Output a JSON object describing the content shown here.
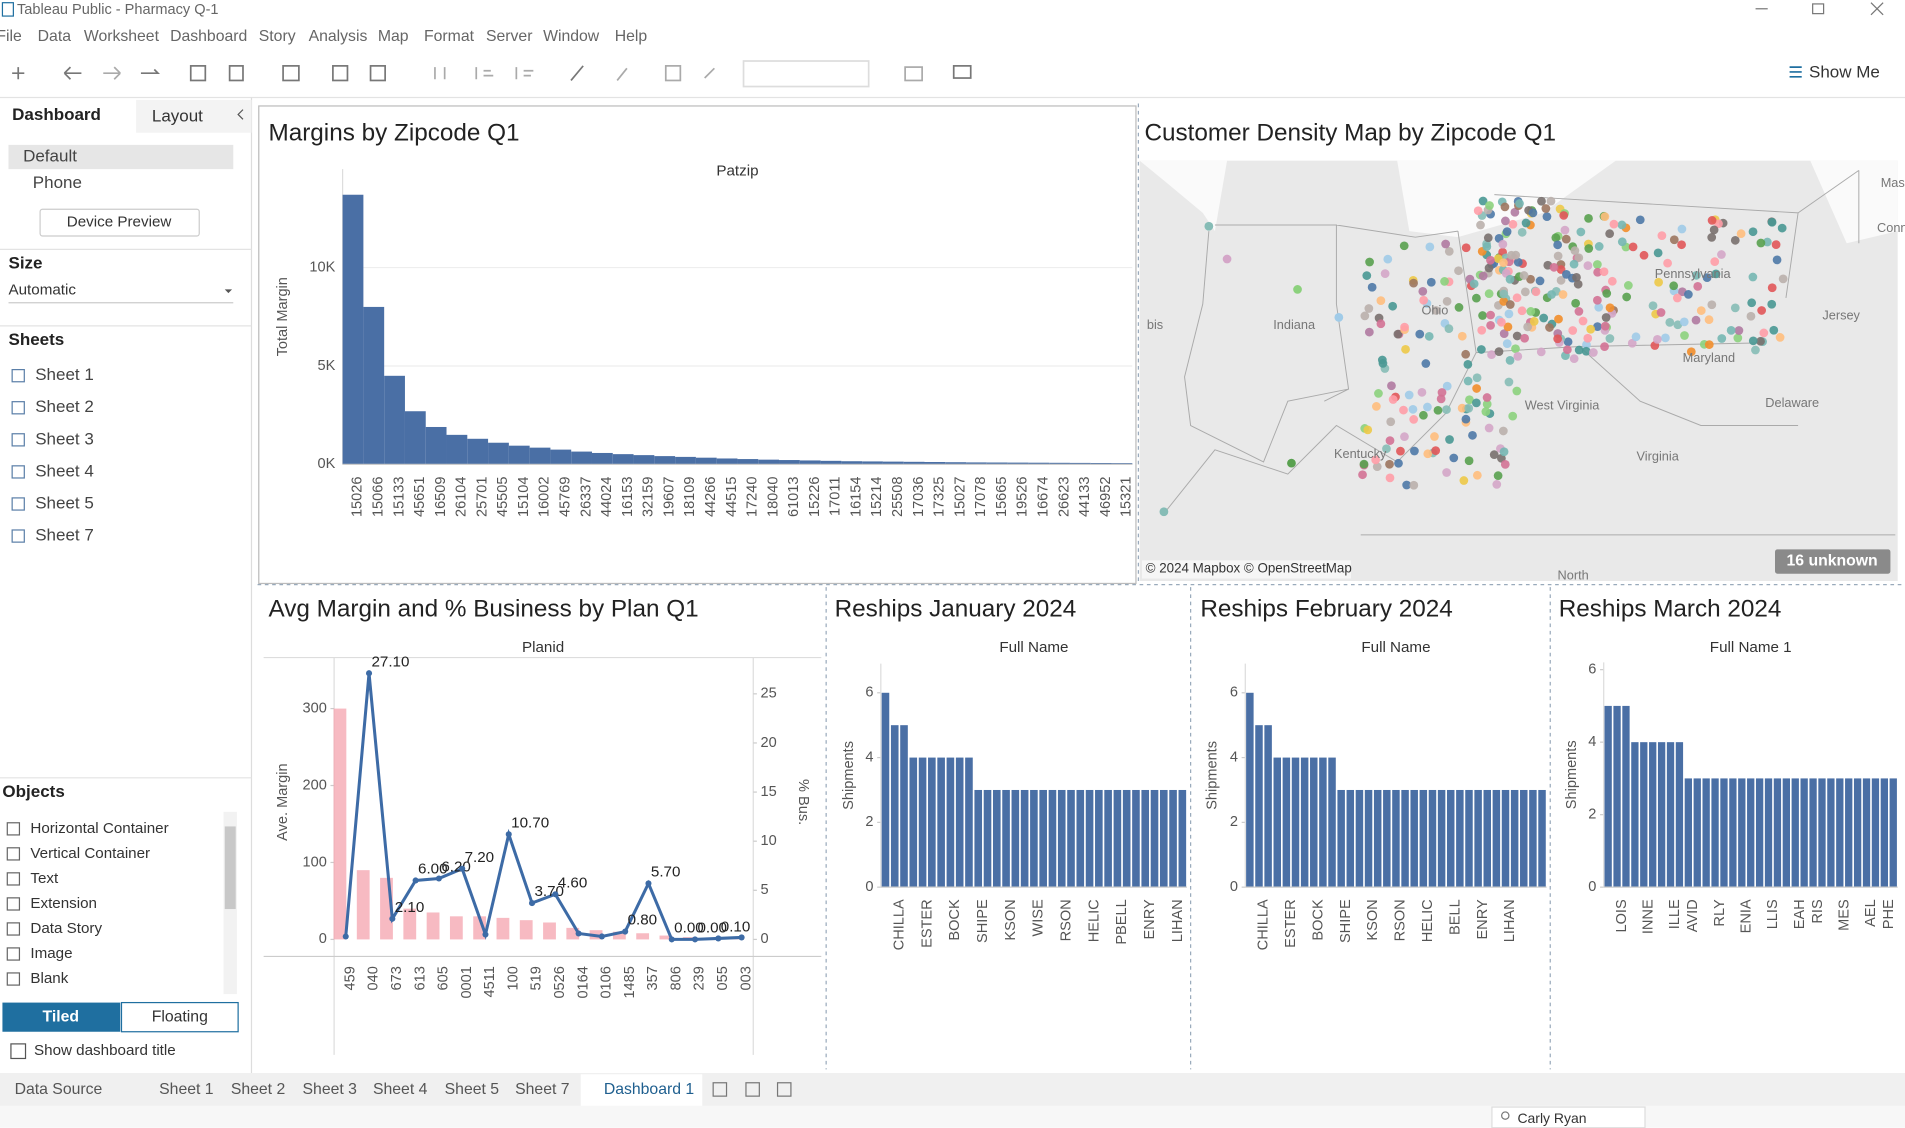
{
  "window": {
    "title": "Tableau Public - Pharmacy Q-1"
  },
  "menu": [
    "File",
    "Data",
    "Worksheet",
    "Dashboard",
    "Story",
    "Analysis",
    "Map",
    "Format",
    "Server",
    "Window",
    "Help"
  ],
  "toolbar": {
    "show_me": "Show Me"
  },
  "side_panel": {
    "tabs": [
      "Dashboard",
      "Layout"
    ],
    "devices": [
      "Default",
      "Phone"
    ],
    "device_preview": "Device Preview",
    "size_heading": "Size",
    "size_value": "Automatic",
    "sheets_heading": "Sheets",
    "sheets": [
      "Sheet 1",
      "Sheet 2",
      "Sheet 3",
      "Sheet 4",
      "Sheet 5",
      "Sheet 7"
    ],
    "objects_heading": "Objects",
    "objects": [
      "Horizontal Container",
      "Vertical Container",
      "Text",
      "Extension",
      "Data Story",
      "Image",
      "Blank"
    ],
    "layout_modes": [
      "Tiled",
      "Floating"
    ],
    "show_title": "Show dashboard title"
  },
  "dashboard": {
    "margins": {
      "type": "bar",
      "title": "Margins by Zipcode Q1",
      "x_title": "Patzip",
      "y_title": "Total Margin",
      "color": "#4a6fa5",
      "grid": true,
      "categories": [
        "15026",
        "15066",
        "15133",
        "45651",
        "16509",
        "26104",
        "25701",
        "45505",
        "15104",
        "16002",
        "45769",
        "26337",
        "44024",
        "16153",
        "32159",
        "19607",
        "18109",
        "44266",
        "44515",
        "17240",
        "18040",
        "61013",
        "15226",
        "17011",
        "16154",
        "15214",
        "25508",
        "17036",
        "17325",
        "15027",
        "17078",
        "15665",
        "19526",
        "16674",
        "26623",
        "44133",
        "46952",
        "15321"
      ],
      "values": [
        13700,
        8000,
        4500,
        2700,
        1900,
        1500,
        1300,
        1100,
        950,
        850,
        750,
        650,
        580,
        520,
        470,
        420,
        380,
        340,
        300,
        270,
        240,
        220,
        200,
        180,
        160,
        150,
        140,
        130,
        120,
        110,
        100,
        95,
        90,
        85,
        80,
        75,
        70,
        65
      ],
      "ylim": [
        0,
        15000
      ],
      "yticks": [
        {
          "value": 0,
          "label": "0K"
        },
        {
          "value": 5000,
          "label": "5K"
        },
        {
          "value": 10000,
          "label": "10K"
        }
      ]
    },
    "map": {
      "type": "map",
      "title": "Customer Density Map by Zipcode Q1",
      "places": [
        "Indiana",
        "Ohio",
        "Pennsylvania",
        "Kentucky",
        "West Virginia",
        "Virginia",
        "Maryland",
        "Delaware",
        "Jersey",
        "Mass",
        "Connec",
        "bis",
        "North"
      ],
      "credit": "© 2024 Mapbox © OpenStreetMap",
      "unknown": "16 unknown"
    },
    "plans": {
      "type": "combo",
      "title": "Avg Margin and % Business by Plan Q1",
      "x_title": "Planid",
      "y_title": "Ave. Margin",
      "y2_title": "% Bus.",
      "categories": [
        "459",
        "040",
        "673",
        "613",
        "605",
        "0001",
        "4511",
        "100",
        "519",
        "0526",
        "0164",
        "0106",
        "1485",
        "357",
        "806",
        "239",
        "055",
        "003"
      ],
      "series": [
        {
          "type": "bar",
          "color": "#f4a3ae",
          "values": [
            300,
            90,
            80,
            40,
            35,
            30,
            30,
            28,
            25,
            22,
            15,
            12,
            10,
            8,
            5,
            3,
            2,
            1
          ]
        },
        {
          "type": "line",
          "axis": "y2",
          "color": "#3d6ba6",
          "values": [
            0.3,
            27.1,
            2.1,
            6,
            6.2,
            7.2,
            0.5,
            10.7,
            3.7,
            4.6,
            0.6,
            0.3,
            0.8,
            5.7,
            0,
            0,
            0.1,
            0.2
          ],
          "value_labels": [
            null,
            "27.10",
            "2.10",
            "6.00",
            "6.20",
            "7.20",
            null,
            "10.70",
            "3.70",
            "4.60",
            null,
            null,
            "0.80",
            "5.70",
            "0.00",
            "0.00",
            "0.10",
            null
          ]
        }
      ],
      "ylim": [
        0,
        360
      ],
      "yticks": [
        0,
        100,
        200,
        300
      ],
      "y2lim": [
        0,
        28.2
      ],
      "y2ticks": [
        0,
        5,
        10,
        15,
        20,
        25
      ]
    },
    "reships_jan": {
      "type": "bar",
      "title": "Reships January 2024",
      "x_title": "Full Name",
      "y_title": "Shipments",
      "color": "#4a6fa5",
      "categories": [
        null,
        "CHILLA",
        null,
        null,
        "ESTER",
        null,
        null,
        "BOCK",
        null,
        null,
        "SHIPE",
        null,
        null,
        "KSON",
        null,
        null,
        "WISE",
        null,
        null,
        "RSON",
        null,
        null,
        "HELIC",
        null,
        null,
        "PBELL",
        null,
        null,
        "ENRY",
        null,
        null,
        "LIHAN",
        null
      ],
      "values": [
        6,
        5,
        5,
        4,
        4,
        4,
        4,
        4,
        4,
        4,
        3,
        3,
        3,
        3,
        3,
        3,
        3,
        3,
        3,
        3,
        3,
        3,
        3,
        3,
        3,
        3,
        3,
        3,
        3,
        3,
        3,
        3,
        3
      ],
      "ylim": [
        0,
        6.9
      ],
      "yticks": [
        0,
        2,
        4,
        6
      ]
    },
    "reships_feb": {
      "type": "bar",
      "title": "Reships February 2024",
      "x_title": "Full Name",
      "y_title": "Shipments",
      "color": "#4a6fa5",
      "categories": [
        null,
        "CHILLA",
        null,
        null,
        "ESTER",
        null,
        null,
        "BOCK",
        null,
        null,
        "SHIPE",
        null,
        null,
        "KSON",
        null,
        null,
        "RSON",
        null,
        null,
        "HELIC",
        null,
        null,
        "BELL",
        null,
        null,
        "ENRY",
        null,
        null,
        "LIHAN",
        null,
        null,
        null,
        null
      ],
      "values": [
        6,
        5,
        5,
        4,
        4,
        4,
        4,
        4,
        4,
        4,
        3,
        3,
        3,
        3,
        3,
        3,
        3,
        3,
        3,
        3,
        3,
        3,
        3,
        3,
        3,
        3,
        3,
        3,
        3,
        3,
        3,
        3,
        3
      ],
      "ylim": [
        0,
        6.9
      ],
      "yticks": [
        0,
        2,
        4,
        6
      ]
    },
    "reships_mar": {
      "type": "bar",
      "title": "Reships March 2024",
      "x_title": "Full Name 1",
      "y_title": "Shipments",
      "color": "#4a6fa5",
      "categories": [
        null,
        "LOIS",
        null,
        null,
        "INNE",
        null,
        null,
        "ILLE",
        null,
        "AVID",
        null,
        null,
        "RLY",
        null,
        null,
        "ENIA",
        null,
        null,
        "LLIS",
        null,
        null,
        "EAH",
        null,
        "RIS",
        null,
        null,
        "MES",
        null,
        null,
        "AEL",
        null,
        "PHE",
        null
      ],
      "values": [
        5,
        5,
        5,
        4,
        4,
        4,
        4,
        4,
        4,
        3,
        3,
        3,
        3,
        3,
        3,
        3,
        3,
        3,
        3,
        3,
        3,
        3,
        3,
        3,
        3,
        3,
        3,
        3,
        3,
        3,
        3,
        3,
        3
      ],
      "ylim": [
        0,
        6.2
      ],
      "yticks": [
        0,
        2,
        4,
        6
      ]
    }
  },
  "sheet_tabs": [
    "Data Source",
    "Sheet 1",
    "Sheet 2",
    "Sheet 3",
    "Sheet 4",
    "Sheet 5",
    "Sheet 7",
    "Dashboard 1"
  ],
  "status": {
    "user": "Carly Ryan"
  }
}
